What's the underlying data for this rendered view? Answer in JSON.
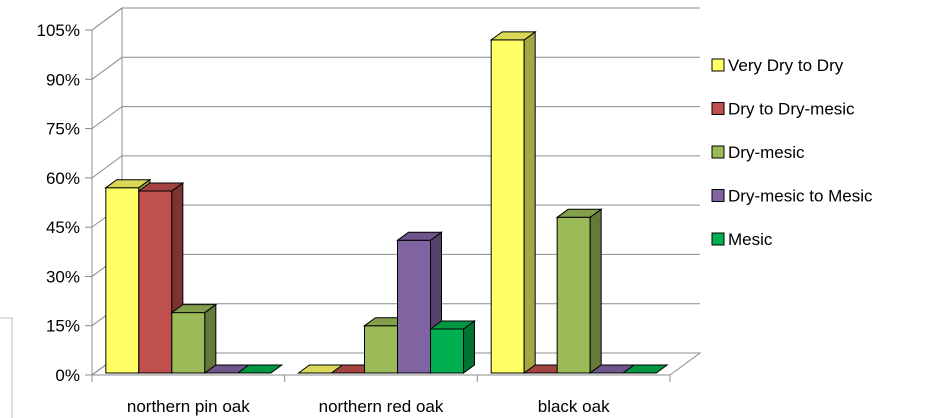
{
  "chart_data": {
    "type": "bar",
    "title": "",
    "xlabel": "",
    "ylabel": "",
    "categories": [
      "northern pin oak",
      "northern red oak",
      "black oak"
    ],
    "ylim": [
      0,
      105
    ],
    "yticks": [
      0,
      15,
      30,
      45,
      60,
      75,
      90,
      105
    ],
    "ytick_labels": [
      "0%",
      "15%",
      "30%",
      "45%",
      "60%",
      "75%",
      "90%",
      "105%"
    ],
    "grid": true,
    "legend_position": "right",
    "series": [
      {
        "name": "Very Dry to Dry",
        "color": "#ffff66",
        "values": [
          57,
          0,
          102
        ]
      },
      {
        "name": "Dry to Dry-mesic",
        "color": "#c0504d",
        "values": [
          56,
          0,
          0
        ]
      },
      {
        "name": "Dry-mesic",
        "color": "#9bbb59",
        "values": [
          19,
          15,
          48
        ]
      },
      {
        "name": "Dry-mesic to Mesic",
        "color": "#8064a2",
        "values": [
          0,
          41,
          0
        ]
      },
      {
        "name": "Mesic",
        "color": "#00b050",
        "values": [
          0,
          14,
          0
        ]
      }
    ]
  }
}
